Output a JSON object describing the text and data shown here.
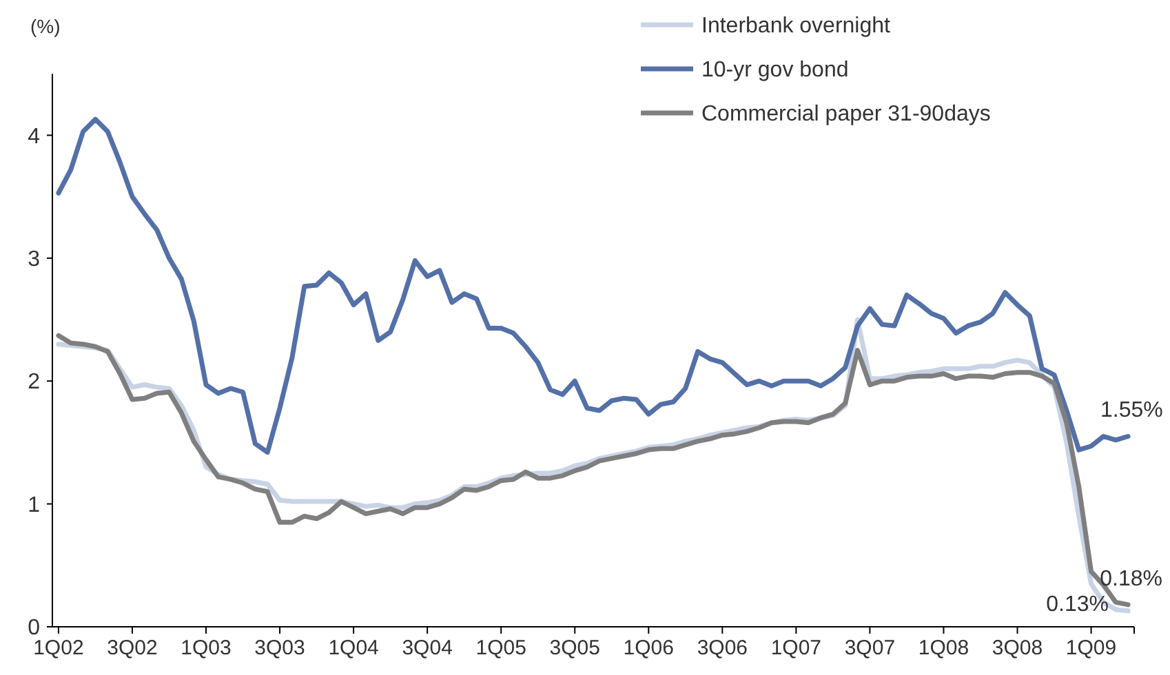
{
  "chart_data": {
    "type": "line",
    "ylabel": "(%)",
    "categories": [
      "1Q02",
      null,
      null,
      null,
      null,
      null,
      "3Q02",
      null,
      null,
      null,
      null,
      null,
      "1Q03",
      null,
      null,
      null,
      null,
      null,
      "3Q03",
      null,
      null,
      null,
      null,
      null,
      "1Q04",
      null,
      null,
      null,
      null,
      null,
      "3Q04",
      null,
      null,
      null,
      null,
      null,
      "1Q05",
      null,
      null,
      null,
      null,
      null,
      "3Q05",
      null,
      null,
      null,
      null,
      null,
      "1Q06",
      null,
      null,
      null,
      null,
      null,
      "3Q06",
      null,
      null,
      null,
      null,
      null,
      "1Q07",
      null,
      null,
      null,
      null,
      null,
      "3Q07",
      null,
      null,
      null,
      null,
      null,
      "1Q08",
      null,
      null,
      null,
      null,
      null,
      "3Q08",
      null,
      null,
      null,
      null,
      null,
      "1Q09",
      null,
      null,
      null
    ],
    "series": [
      {
        "name": "Interbank overnight",
        "color": "#c9d3e6",
        "values": [
          2.3,
          2.29,
          2.28,
          2.27,
          2.25,
          2.1,
          1.95,
          1.97,
          1.95,
          1.94,
          1.8,
          1.6,
          1.3,
          1.24,
          1.2,
          1.19,
          1.18,
          1.16,
          1.03,
          1.02,
          1.02,
          1.02,
          1.02,
          1.02,
          1.0,
          0.98,
          0.99,
          0.97,
          0.97,
          1.0,
          1.01,
          1.03,
          1.07,
          1.14,
          1.14,
          1.17,
          1.21,
          1.23,
          1.24,
          1.25,
          1.25,
          1.27,
          1.31,
          1.33,
          1.37,
          1.39,
          1.41,
          1.43,
          1.46,
          1.47,
          1.48,
          1.51,
          1.53,
          1.56,
          1.58,
          1.6,
          1.62,
          1.63,
          1.66,
          1.68,
          1.69,
          1.68,
          1.7,
          1.72,
          1.8,
          2.5,
          2.02,
          2.02,
          2.04,
          2.05,
          2.07,
          2.08,
          2.1,
          2.1,
          2.1,
          2.12,
          2.12,
          2.15,
          2.17,
          2.15,
          2.05,
          1.95,
          1.5,
          0.9,
          0.35,
          0.2,
          0.14,
          0.13
        ],
        "value_labels": [
          null,
          null,
          null,
          null,
          null,
          null,
          null,
          null,
          null,
          null,
          null,
          null,
          null,
          null,
          null,
          null,
          null,
          null,
          null,
          null,
          null,
          null,
          null,
          null,
          null,
          null,
          null,
          null,
          null,
          null,
          null,
          null,
          null,
          null,
          null,
          null,
          null,
          null,
          null,
          null,
          null,
          null,
          null,
          null,
          null,
          null,
          null,
          null,
          null,
          null,
          null,
          null,
          null,
          null,
          null,
          null,
          null,
          null,
          null,
          null,
          null,
          null,
          null,
          null,
          null,
          null,
          null,
          null,
          null,
          null,
          null,
          null,
          null,
          null,
          null,
          null,
          null,
          null,
          null,
          null,
          null,
          null,
          null,
          null,
          null,
          null,
          null,
          "0.13%"
        ]
      },
      {
        "name": "10-yr gov bond",
        "color": "#5470a8",
        "values": [
          3.53,
          3.72,
          4.03,
          4.13,
          4.03,
          3.78,
          3.5,
          3.36,
          3.23,
          3.0,
          2.83,
          2.49,
          1.97,
          1.9,
          1.94,
          1.91,
          1.49,
          1.42,
          1.78,
          2.19,
          2.77,
          2.78,
          2.88,
          2.8,
          2.62,
          2.71,
          2.33,
          2.4,
          2.66,
          2.98,
          2.85,
          2.9,
          2.64,
          2.71,
          2.67,
          2.43,
          2.43,
          2.39,
          2.28,
          2.15,
          1.93,
          1.89,
          2.0,
          1.78,
          1.76,
          1.84,
          1.86,
          1.85,
          1.73,
          1.81,
          1.83,
          1.94,
          2.24,
          2.18,
          2.15,
          2.06,
          1.97,
          2.0,
          1.96,
          2.0,
          2.0,
          2.0,
          1.96,
          2.02,
          2.11,
          2.45,
          2.59,
          2.46,
          2.45,
          2.7,
          2.63,
          2.55,
          2.51,
          2.39,
          2.45,
          2.48,
          2.55,
          2.72,
          2.62,
          2.53,
          2.1,
          2.05,
          1.76,
          1.44,
          1.47,
          1.55,
          1.52,
          1.55
        ],
        "value_labels": [
          null,
          null,
          null,
          null,
          null,
          null,
          null,
          null,
          null,
          null,
          null,
          null,
          null,
          null,
          null,
          null,
          null,
          null,
          null,
          null,
          null,
          null,
          null,
          null,
          null,
          null,
          null,
          null,
          null,
          null,
          null,
          null,
          null,
          null,
          null,
          null,
          null,
          null,
          null,
          null,
          null,
          null,
          null,
          null,
          null,
          null,
          null,
          null,
          null,
          null,
          null,
          null,
          null,
          null,
          null,
          null,
          null,
          null,
          null,
          null,
          null,
          null,
          null,
          null,
          null,
          null,
          null,
          null,
          null,
          null,
          null,
          null,
          null,
          null,
          null,
          null,
          null,
          null,
          null,
          null,
          null,
          null,
          null,
          null,
          null,
          null,
          null,
          "1.55%"
        ]
      },
      {
        "name": "Commercial paper 31-90days",
        "color": "#7f7f7f",
        "values": [
          2.37,
          2.31,
          2.3,
          2.28,
          2.24,
          2.06,
          1.85,
          1.86,
          1.9,
          1.91,
          1.74,
          1.51,
          1.36,
          1.22,
          1.2,
          1.17,
          1.12,
          1.1,
          0.85,
          0.85,
          0.9,
          0.88,
          0.93,
          1.02,
          0.97,
          0.92,
          0.94,
          0.96,
          0.92,
          0.97,
          0.97,
          1.0,
          1.05,
          1.12,
          1.11,
          1.14,
          1.19,
          1.2,
          1.26,
          1.21,
          1.21,
          1.23,
          1.27,
          1.3,
          1.35,
          1.37,
          1.39,
          1.41,
          1.44,
          1.45,
          1.45,
          1.48,
          1.51,
          1.53,
          1.56,
          1.57,
          1.59,
          1.62,
          1.66,
          1.67,
          1.67,
          1.66,
          1.7,
          1.73,
          1.82,
          2.25,
          1.97,
          2.0,
          2.0,
          2.03,
          2.04,
          2.04,
          2.06,
          2.02,
          2.04,
          2.04,
          2.03,
          2.06,
          2.07,
          2.07,
          2.04,
          1.98,
          1.66,
          1.14,
          0.45,
          0.34,
          0.2,
          0.18
        ],
        "value_labels": [
          null,
          null,
          null,
          null,
          null,
          null,
          null,
          null,
          null,
          null,
          null,
          null,
          null,
          null,
          null,
          null,
          null,
          null,
          null,
          null,
          null,
          null,
          null,
          null,
          null,
          null,
          null,
          null,
          null,
          null,
          null,
          null,
          null,
          null,
          null,
          null,
          null,
          null,
          null,
          null,
          null,
          null,
          null,
          null,
          null,
          null,
          null,
          null,
          null,
          null,
          null,
          null,
          null,
          null,
          null,
          null,
          null,
          null,
          null,
          null,
          null,
          null,
          null,
          null,
          null,
          null,
          null,
          null,
          null,
          null,
          null,
          null,
          null,
          null,
          null,
          null,
          null,
          null,
          null,
          null,
          null,
          null,
          null,
          null,
          null,
          null,
          null,
          "0.18%"
        ]
      }
    ],
    "ylim": [
      0,
      4.5
    ],
    "yticks": [
      0,
      1,
      2,
      3,
      4
    ],
    "legend": "top right",
    "grid": false,
    "marker": "none",
    "line_style": "solid"
  }
}
